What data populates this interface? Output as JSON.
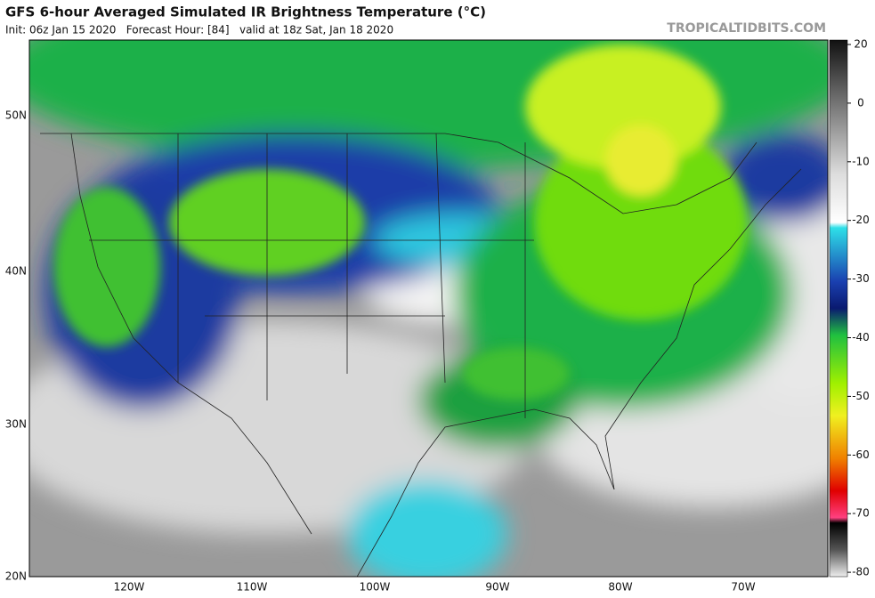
{
  "header": {
    "title": "GFS 6-hour Averaged Simulated IR Brightness Temperature (°C)",
    "subtitle": "Init: 06z Jan 15 2020   Forecast Hour: [84]   valid at 18z Sat, Jan 18 2020",
    "site": "TROPICALTIDBITS.COM"
  },
  "map": {
    "lat_labels": [
      "50N",
      "40N",
      "30N",
      "20N"
    ],
    "lon_labels": [
      "120W",
      "110W",
      "100W",
      "90W",
      "80W",
      "70W"
    ]
  },
  "colorbar": {
    "ticks": [
      20,
      0,
      -10,
      -20,
      -30,
      -40,
      -50,
      -60,
      -70,
      -80
    ]
  }
}
